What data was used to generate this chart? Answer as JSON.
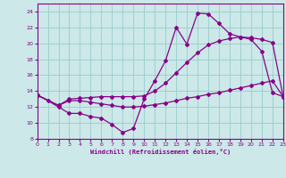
{
  "xlabel": "Windchill (Refroidissement éolien,°C)",
  "bg_color": "#cce8e8",
  "grid_color": "#99cccc",
  "line_color": "#880088",
  "xlim": [
    0,
    23
  ],
  "ylim": [
    8,
    25
  ],
  "xticks": [
    0,
    1,
    2,
    3,
    4,
    5,
    6,
    7,
    8,
    9,
    10,
    11,
    12,
    13,
    14,
    15,
    16,
    17,
    18,
    19,
    20,
    21,
    22,
    23
  ],
  "yticks": [
    8,
    10,
    12,
    14,
    16,
    18,
    20,
    22,
    24
  ],
  "line1_x": [
    0,
    1,
    2,
    3,
    4,
    5,
    6,
    7,
    8,
    9,
    10,
    11,
    12,
    13,
    14,
    15,
    16,
    17,
    18,
    19,
    20,
    21,
    22,
    23
  ],
  "line1_y": [
    13.5,
    12.8,
    12.0,
    11.2,
    11.2,
    10.8,
    10.6,
    9.8,
    8.8,
    9.3,
    13.0,
    15.3,
    17.8,
    22.0,
    19.9,
    23.8,
    23.7,
    22.5,
    21.2,
    20.8,
    20.5,
    19.0,
    13.8,
    13.3
  ],
  "line2_x": [
    0,
    2,
    3,
    4,
    5,
    6,
    7,
    8,
    9,
    10,
    11,
    12,
    13,
    14,
    15,
    16,
    17,
    18,
    19,
    20,
    21,
    22,
    23
  ],
  "line2_y": [
    13.5,
    12.2,
    13.0,
    13.1,
    13.2,
    13.3,
    13.3,
    13.3,
    13.3,
    13.4,
    14.0,
    15.0,
    16.3,
    17.6,
    18.8,
    19.8,
    20.3,
    20.6,
    20.8,
    20.7,
    20.5,
    20.1,
    13.3
  ],
  "line3_x": [
    0,
    2,
    3,
    4,
    5,
    6,
    7,
    8,
    9,
    10,
    11,
    12,
    13,
    14,
    15,
    16,
    17,
    18,
    19,
    20,
    21,
    22,
    23
  ],
  "line3_y": [
    13.5,
    12.2,
    12.8,
    12.8,
    12.6,
    12.4,
    12.2,
    12.0,
    12.0,
    12.1,
    12.3,
    12.5,
    12.8,
    13.1,
    13.3,
    13.6,
    13.8,
    14.1,
    14.4,
    14.7,
    15.0,
    15.3,
    13.3
  ]
}
